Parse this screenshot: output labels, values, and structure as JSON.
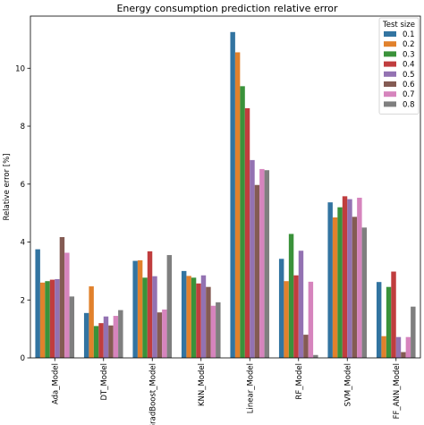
{
  "chart_data": {
    "type": "bar",
    "title": "Energy consumption prediction relative error",
    "xlabel": "",
    "ylabel": "Relative error [%]",
    "ylim": [
      0,
      11.8
    ],
    "yticks": [
      0,
      2,
      4,
      6,
      8,
      10
    ],
    "grid": false,
    "legend_position": "top-right",
    "legend_title": "Test size",
    "categories": [
      "Ada_Model",
      "DT_Model",
      "GradBoost_Model",
      "KNN_Model",
      "Linear_Model",
      "RF_Model",
      "SVM_Model",
      "FF_ANN_Model"
    ],
    "series": [
      {
        "name": "0.1",
        "color": "#3274a1",
        "values": [
          3.75,
          1.55,
          3.35,
          3.0,
          11.25,
          3.42,
          5.37,
          2.62
        ]
      },
      {
        "name": "0.2",
        "color": "#e1812c",
        "values": [
          2.6,
          2.47,
          3.37,
          2.83,
          10.55,
          2.65,
          4.85,
          0.75
        ]
      },
      {
        "name": "0.3",
        "color": "#3a923a",
        "values": [
          2.65,
          1.1,
          2.77,
          2.77,
          9.38,
          4.28,
          5.2,
          2.45
        ]
      },
      {
        "name": "0.4",
        "color": "#c03d3e",
        "values": [
          2.7,
          1.2,
          3.68,
          2.57,
          8.62,
          2.85,
          5.58,
          2.98
        ]
      },
      {
        "name": "0.5",
        "color": "#9372b2",
        "values": [
          2.72,
          1.43,
          2.82,
          2.85,
          6.83,
          3.7,
          5.48,
          0.72
        ]
      },
      {
        "name": "0.6",
        "color": "#845b53",
        "values": [
          4.17,
          1.12,
          1.57,
          2.45,
          5.97,
          0.8,
          4.87,
          0.2
        ]
      },
      {
        "name": "0.7",
        "color": "#d684bd",
        "values": [
          3.63,
          1.45,
          1.67,
          1.8,
          6.52,
          2.63,
          5.53,
          0.72
        ]
      },
      {
        "name": "0.8",
        "color": "#7f7f7f",
        "values": [
          2.12,
          1.65,
          3.55,
          1.92,
          6.48,
          0.1,
          4.5,
          1.77
        ]
      }
    ]
  }
}
